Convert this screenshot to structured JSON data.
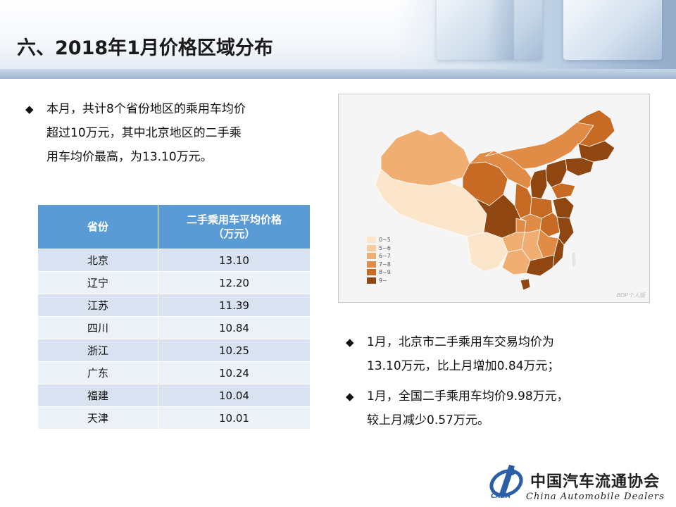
{
  "page": {
    "title": "六、2018年1月价格区域分布"
  },
  "bullets": {
    "left": [
      "本月，共计8个省份地区的乘用车均价",
      "超过10万元，其中北京地区的二手乘",
      "用车均价最高，为13.10万元。"
    ],
    "right_1": [
      "1月，北京市二手乘用车交易均价为",
      "13.10万元，比上月增加0.84万元；"
    ],
    "right_2": [
      "1月，全国二手乘用车均价9.98万元，",
      "较上月减少0.57万元。"
    ],
    "marker": "◆"
  },
  "table": {
    "headers": [
      "省份",
      "二手乘用车平均价格",
      "（万元）"
    ],
    "rows": [
      {
        "province": "北京",
        "price": "13.10"
      },
      {
        "province": "辽宁",
        "price": "12.20"
      },
      {
        "province": "江苏",
        "price": "11.39"
      },
      {
        "province": "四川",
        "price": "10.84"
      },
      {
        "province": "浙江",
        "price": "10.25"
      },
      {
        "province": "广东",
        "price": "10.24"
      },
      {
        "province": "福建",
        "price": "10.04"
      },
      {
        "province": "天津",
        "price": "10.01"
      }
    ],
    "colors": {
      "header": "#5b9bd5",
      "row_odd": "#d9e2f0",
      "row_even": "#ecf1f8"
    }
  },
  "map": {
    "legend": [
      {
        "label": "0~5",
        "color": "#fbe5cb"
      },
      {
        "label": "5~6",
        "color": "#f7cc9f"
      },
      {
        "label": "6~7",
        "color": "#f1ae73"
      },
      {
        "label": "7~8",
        "color": "#e08c47"
      },
      {
        "label": "8~9",
        "color": "#c66a24"
      },
      {
        "label": "9~",
        "color": "#8f4610"
      }
    ],
    "watermark": "BDP个人版"
  },
  "logo": {
    "cn": "中国汽车流通协会",
    "en": "China  Automobile  Dealers",
    "mark": "CADA"
  }
}
